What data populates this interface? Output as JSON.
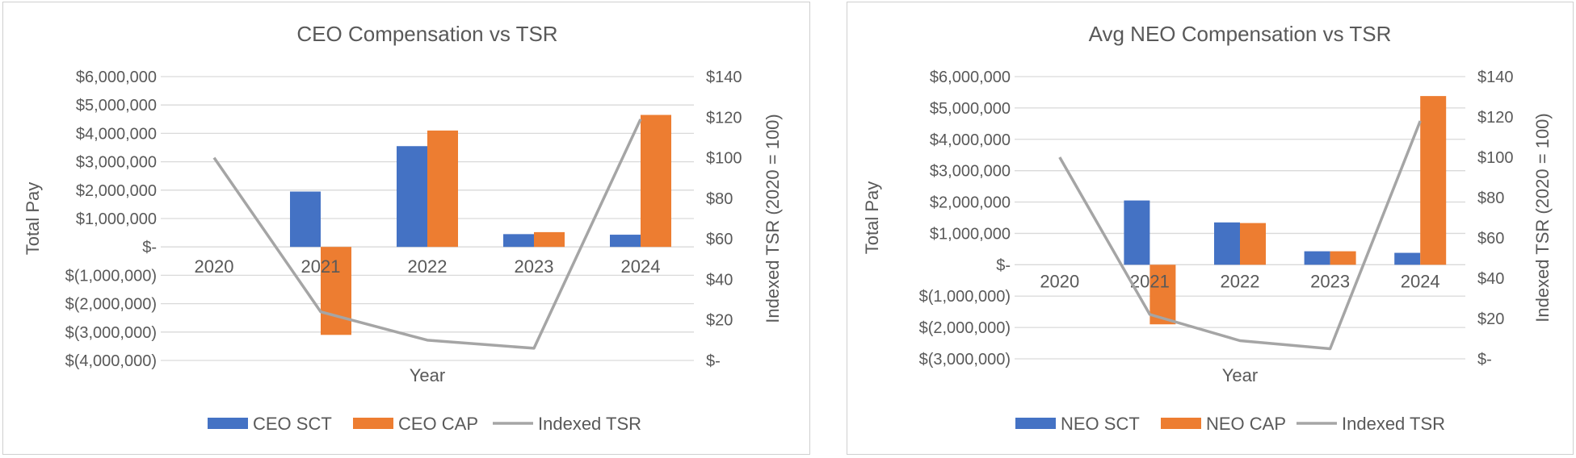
{
  "colors": {
    "sct": "#4472C4",
    "cap": "#ED7D31",
    "tsr": "#A5A5A5",
    "grid": "#D9D9D9",
    "text": "#595959"
  },
  "chart_data": [
    {
      "type": "bar",
      "title": "CEO Compensation vs TSR",
      "xlabel": "Year",
      "ylabel": "Total Pay",
      "y2label": "Indexed TSR (2020 = 100)",
      "categories": [
        "2020",
        "2021",
        "2022",
        "2023",
        "2024"
      ],
      "ylim": [
        -4000000,
        6000000
      ],
      "yticks": [
        6000000,
        5000000,
        4000000,
        3000000,
        2000000,
        1000000,
        0,
        -1000000,
        -2000000,
        -3000000,
        -4000000
      ],
      "ytick_labels": [
        "$6,000,000",
        "$5,000,000",
        "$4,000,000",
        "$3,000,000",
        "$2,000,000",
        "$1,000,000",
        "$-",
        "$(1,000,000)",
        "$(2,000,000)",
        "$(3,000,000)",
        "$(4,000,000)"
      ],
      "y2lim": [
        0,
        140
      ],
      "y2ticks": [
        140,
        120,
        100,
        80,
        60,
        40,
        20,
        0
      ],
      "y2tick_labels": [
        "$140",
        "$120",
        "$100",
        "$80",
        "$60",
        "$40",
        "$20",
        "$-"
      ],
      "series": [
        {
          "name": "CEO SCT",
          "kind": "bar",
          "values": [
            0,
            1950000,
            3550000,
            450000,
            430000
          ]
        },
        {
          "name": "CEO CAP",
          "kind": "bar",
          "values": [
            0,
            -3100000,
            4100000,
            520000,
            4650000
          ]
        },
        {
          "name": "Indexed TSR",
          "kind": "line",
          "axis": "secondary",
          "values": [
            100,
            24,
            10,
            6,
            119
          ]
        }
      ],
      "legend": "bottom",
      "grid": true
    },
    {
      "type": "bar",
      "title": "Avg NEO Compensation vs TSR",
      "xlabel": "Year",
      "ylabel": "Total Pay",
      "y2label": "Indexed TSR (2020 = 100)",
      "categories": [
        "2020",
        "2021",
        "2022",
        "2023",
        "2024"
      ],
      "ylim": [
        -3000000,
        6000000
      ],
      "yticks": [
        6000000,
        5000000,
        4000000,
        3000000,
        2000000,
        1000000,
        0,
        -1000000,
        -2000000,
        -3000000
      ],
      "ytick_labels": [
        "$6,000,000",
        "$5,000,000",
        "$4,000,000",
        "$3,000,000",
        "$2,000,000",
        "$1,000,000",
        "$-",
        "$(1,000,000)",
        "$(2,000,000)",
        "$(3,000,000)"
      ],
      "y2lim": [
        0,
        140
      ],
      "y2ticks": [
        140,
        120,
        100,
        80,
        60,
        40,
        20,
        0
      ],
      "y2tick_labels": [
        "$140",
        "$120",
        "$100",
        "$80",
        "$60",
        "$40",
        "$20",
        "$-"
      ],
      "series": [
        {
          "name": "NEO SCT",
          "kind": "bar",
          "values": [
            0,
            2050000,
            1350000,
            430000,
            380000
          ]
        },
        {
          "name": "NEO CAP",
          "kind": "bar",
          "values": [
            0,
            -1900000,
            1330000,
            430000,
            5380000
          ]
        },
        {
          "name": "Indexed TSR",
          "kind": "line",
          "axis": "secondary",
          "values": [
            100,
            22,
            9,
            5,
            118
          ]
        }
      ],
      "legend": "bottom",
      "grid": true
    }
  ]
}
